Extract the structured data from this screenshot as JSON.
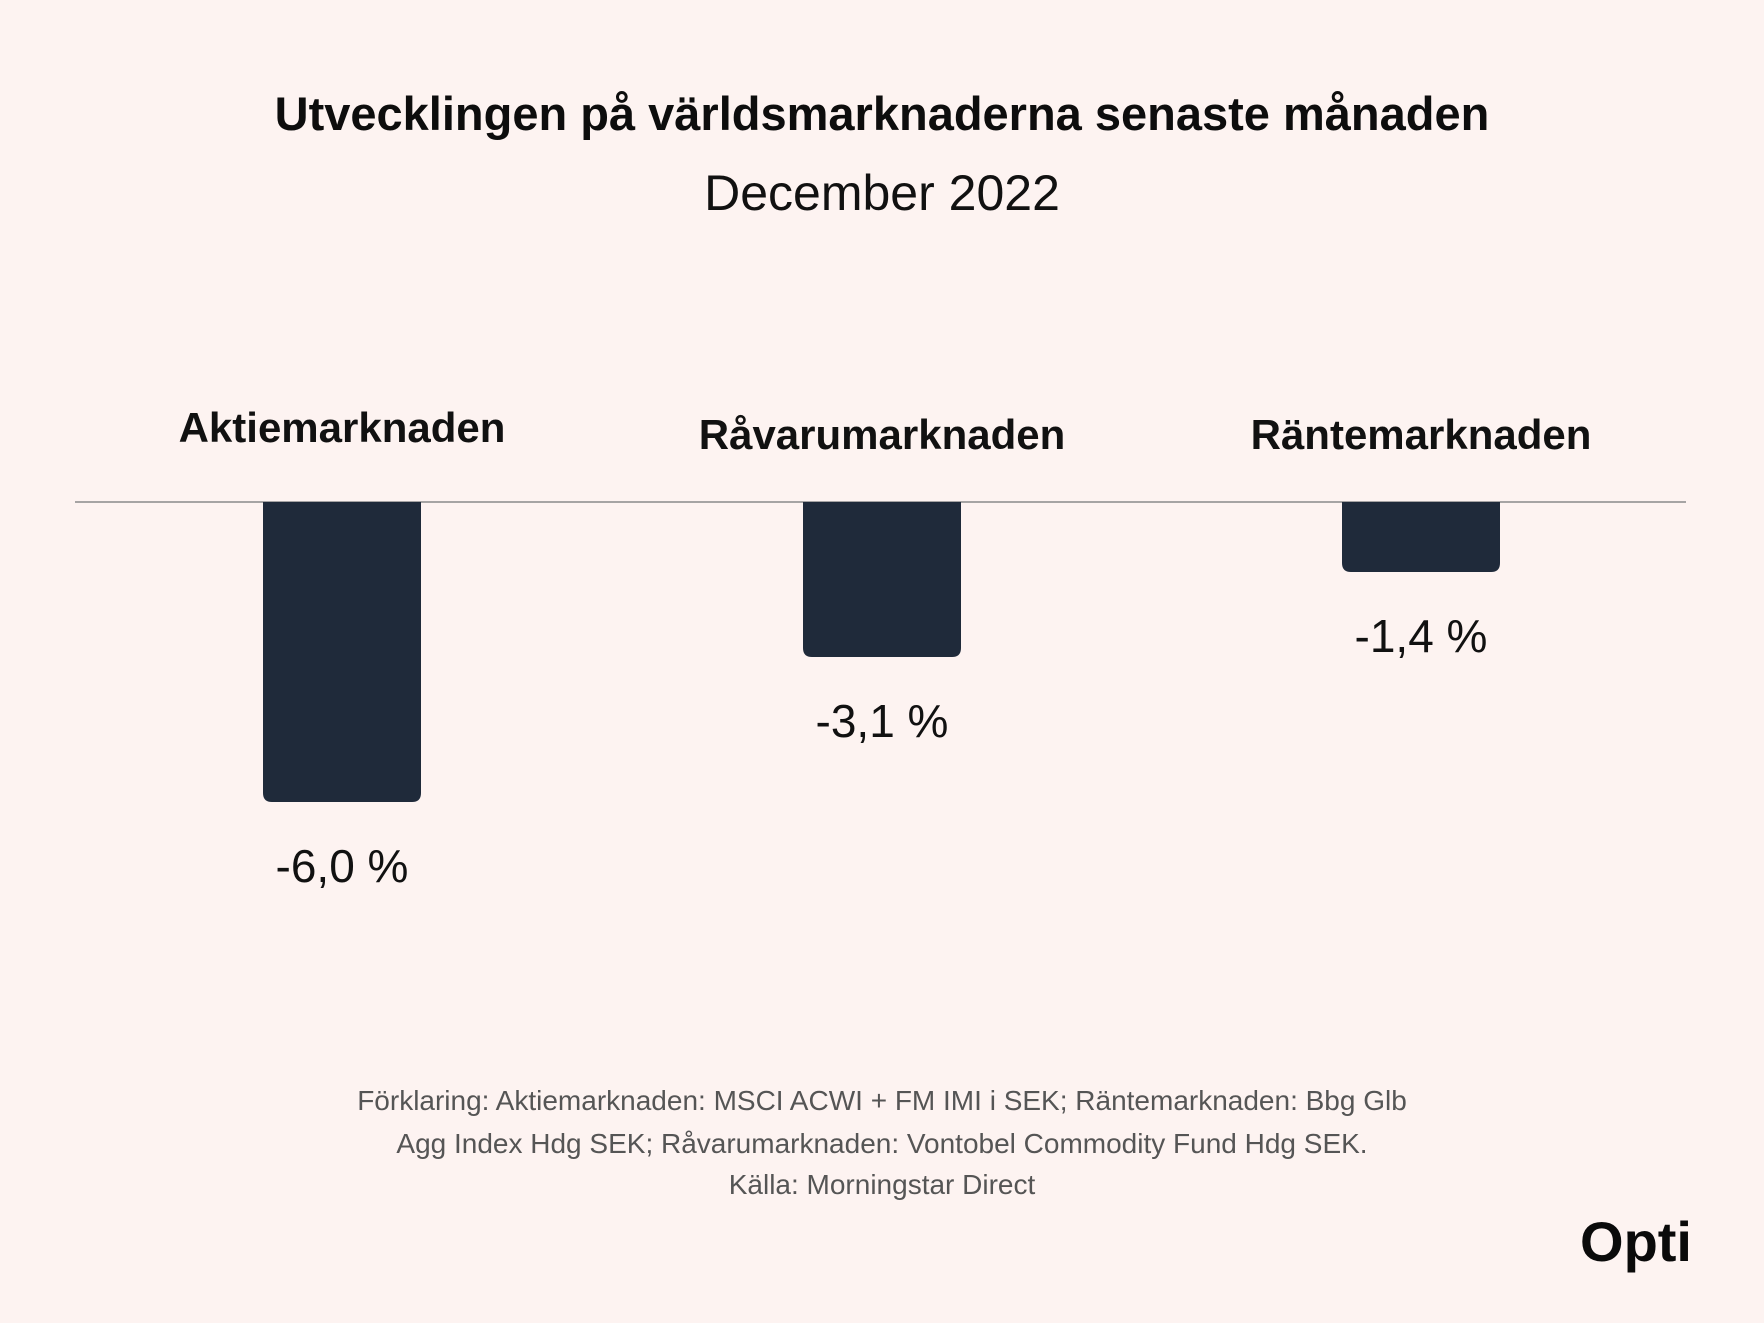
{
  "chart_data": {
    "type": "bar",
    "title": "Utvecklingen på världsmarknaderna senaste månaden",
    "subtitle": "December 2022",
    "categories": [
      "Aktiemarknaden",
      "Råvarumarknaden",
      "Räntemarknaden"
    ],
    "values": [
      -6.0,
      -3.1,
      -1.4
    ],
    "value_labels": [
      "-6,0 %",
      "-3,1 %",
      "-1,4 %"
    ],
    "ylim": [
      -6.0,
      0
    ],
    "grid": false,
    "legend": "none",
    "xlabel": "",
    "ylabel": ""
  },
  "footnote": {
    "lines": [
      "Förklaring: Aktiemarknaden: MSCI ACWI + FM IMI i SEK; Räntemarknaden: Bbg Glb",
      "Agg Index Hdg SEK; Råvarumarknaden: Vontobel Commodity Fund Hdg SEK.",
      "Källa: Morningstar Direct"
    ]
  },
  "logo": {
    "text": "Opti"
  },
  "colors": {
    "background": "#fdf3f1",
    "bar": "#1f2a3a",
    "baseline": "#8a8a8a"
  }
}
